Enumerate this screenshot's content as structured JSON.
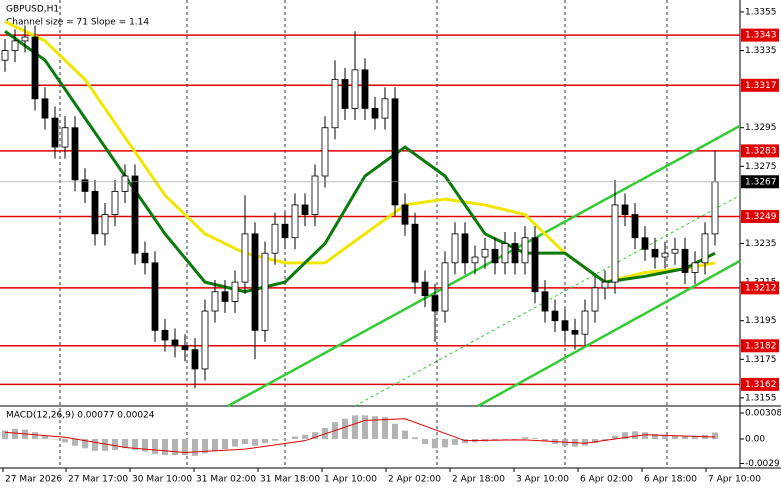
{
  "chart_data": [
    {
      "type": "candlestick",
      "title": "GBPUSD,H1",
      "subtitle": "Channel size = 71 Slope = 1.14",
      "up_color": "#ffffff",
      "down_color": "#000000",
      "open": [
        1.333,
        1.3335,
        1.334,
        1.3342,
        1.331,
        1.33,
        1.3285,
        1.3295,
        1.3268,
        1.3262,
        1.324,
        1.325,
        1.3262,
        1.327,
        1.323,
        1.3225,
        1.319,
        1.3185,
        1.3182,
        1.318,
        1.317,
        1.32,
        1.321,
        1.3205,
        1.3215,
        1.324,
        1.319,
        1.323,
        1.3245,
        1.3238,
        1.3255,
        1.325,
        1.327,
        1.3295,
        1.332,
        1.3305,
        1.3325,
        1.3305,
        1.33,
        1.331,
        1.3255,
        1.3245,
        1.3215,
        1.3208,
        1.32,
        1.3225,
        1.324,
        1.3225,
        1.3228,
        1.3232,
        1.3225,
        1.3235,
        1.3225,
        1.3238,
        1.321,
        1.32,
        1.3195,
        1.319,
        1.3188,
        1.32,
        1.3212,
        1.3215,
        1.3255,
        1.325,
        1.3238,
        1.3232,
        1.3228,
        1.323,
        1.3232,
        1.322,
        1.3225,
        1.324
      ],
      "high": [
        1.3341,
        1.3346,
        1.3348,
        1.3348,
        1.3316,
        1.3306,
        1.3301,
        1.3301,
        1.3274,
        1.3268,
        1.3256,
        1.3268,
        1.3276,
        1.3276,
        1.3236,
        1.3231,
        1.3196,
        1.3191,
        1.3188,
        1.3186,
        1.3206,
        1.3216,
        1.3216,
        1.3221,
        1.326,
        1.3246,
        1.3236,
        1.3251,
        1.3251,
        1.3261,
        1.3261,
        1.3276,
        1.3301,
        1.333,
        1.3326,
        1.3345,
        1.3331,
        1.3311,
        1.3316,
        1.3316,
        1.3261,
        1.3251,
        1.3221,
        1.3214,
        1.3231,
        1.3246,
        1.3246,
        1.3234,
        1.3238,
        1.3238,
        1.3241,
        1.3241,
        1.3244,
        1.3244,
        1.3216,
        1.3206,
        1.3201,
        1.3196,
        1.3206,
        1.3218,
        1.3221,
        1.3268,
        1.3261,
        1.3256,
        1.3244,
        1.3238,
        1.3236,
        1.3238,
        1.3238,
        1.3231,
        1.3246,
        1.3283
      ],
      "low": [
        1.3324,
        1.3329,
        1.3334,
        1.3304,
        1.3294,
        1.3279,
        1.3279,
        1.3262,
        1.3256,
        1.3234,
        1.3234,
        1.3244,
        1.3256,
        1.3224,
        1.3219,
        1.3184,
        1.3179,
        1.3176,
        1.3174,
        1.316,
        1.3164,
        1.3194,
        1.3199,
        1.3199,
        1.3209,
        1.3175,
        1.3184,
        1.3224,
        1.3232,
        1.3232,
        1.3244,
        1.3244,
        1.3264,
        1.3289,
        1.3299,
        1.3299,
        1.3299,
        1.3294,
        1.3294,
        1.3249,
        1.3239,
        1.3209,
        1.3202,
        1.3184,
        1.3194,
        1.3219,
        1.3219,
        1.3219,
        1.3222,
        1.3219,
        1.3219,
        1.3219,
        1.3219,
        1.3204,
        1.3194,
        1.3189,
        1.3184,
        1.318,
        1.3182,
        1.3194,
        1.3206,
        1.3209,
        1.3244,
        1.3232,
        1.3226,
        1.3222,
        1.3222,
        1.3224,
        1.3214,
        1.3214,
        1.3219,
        1.3234
      ],
      "close": [
        1.3335,
        1.334,
        1.3342,
        1.331,
        1.33,
        1.3285,
        1.3295,
        1.3268,
        1.3262,
        1.324,
        1.325,
        1.3262,
        1.327,
        1.323,
        1.3225,
        1.319,
        1.3185,
        1.3182,
        1.318,
        1.317,
        1.32,
        1.321,
        1.3205,
        1.3215,
        1.324,
        1.319,
        1.323,
        1.3245,
        1.3238,
        1.3255,
        1.325,
        1.327,
        1.3295,
        1.332,
        1.3305,
        1.3325,
        1.3305,
        1.33,
        1.331,
        1.3255,
        1.3245,
        1.3215,
        1.3208,
        1.32,
        1.3225,
        1.324,
        1.3225,
        1.3228,
        1.3232,
        1.3225,
        1.3235,
        1.3225,
        1.3238,
        1.321,
        1.32,
        1.3195,
        1.319,
        1.3188,
        1.32,
        1.3212,
        1.3215,
        1.3255,
        1.325,
        1.3238,
        1.3232,
        1.3228,
        1.323,
        1.3232,
        1.322,
        1.3225,
        1.324,
        1.3267
      ],
      "xlim": [
        -0.5,
        73.5
      ],
      "xticks": [
        {
          "value": -0.2,
          "label": "27 Mar 2026"
        },
        {
          "value": 6.1,
          "label": "27 Mar 17:00"
        },
        {
          "value": 12.5,
          "label": "30 Mar 10:00"
        },
        {
          "value": 18.9,
          "label": "31 Mar 02:00"
        },
        {
          "value": 25.3,
          "label": "31 Mar 18:00"
        },
        {
          "value": 31.7,
          "label": "1 Apr 10:00"
        },
        {
          "value": 38.1,
          "label": "2 Apr 02:00"
        },
        {
          "value": 44.5,
          "label": "2 Apr 18:00"
        },
        {
          "value": 50.9,
          "label": "3 Apr 10:00"
        },
        {
          "value": 57.3,
          "label": "6 Apr 02:00"
        },
        {
          "value": 63.7,
          "label": "6 Apr 18:00"
        },
        {
          "value": 70.1,
          "label": "7 Apr 10:00"
        }
      ],
      "ylim": [
        1.31508,
        1.33612
      ],
      "yticks": [
        1.3355,
        1.3335,
        1.3295,
        1.3275,
        1.3235,
        1.3215,
        1.3195,
        1.3175,
        1.3155
      ],
      "levels": [
        1.3343,
        1.3317,
        1.3283,
        1.3249,
        1.3212,
        1.3182,
        1.3162
      ],
      "level_color": "#e00000",
      "current_price": 1.3267,
      "lines": [
        {
          "color": "#f2e600",
          "x": [
            0,
            4,
            8,
            12,
            16,
            20,
            24,
            28,
            32,
            36,
            40,
            44,
            48,
            52,
            56,
            60,
            64,
            68,
            71
          ],
          "values": [
            1.335,
            1.334,
            1.332,
            1.329,
            1.326,
            1.324,
            1.323,
            1.3225,
            1.3225,
            1.324,
            1.3255,
            1.3258,
            1.3255,
            1.325,
            1.323,
            1.3215,
            1.322,
            1.3222,
            1.3225
          ]
        },
        {
          "color": "#0a7a0a",
          "x": [
            0,
            4,
            8,
            12,
            16,
            20,
            24,
            28,
            32,
            36,
            40,
            44,
            48,
            52,
            56,
            60,
            64,
            68,
            71
          ],
          "values": [
            1.3345,
            1.333,
            1.33,
            1.327,
            1.324,
            1.3215,
            1.321,
            1.3215,
            1.3235,
            1.327,
            1.3285,
            1.327,
            1.324,
            1.323,
            1.323,
            1.3215,
            1.3218,
            1.3222,
            1.323
          ]
        }
      ],
      "channel": [
        {
          "color": "#33cc33",
          "x": [
            22.3,
            73.5
          ],
          "values": [
            1.31508,
            1.3296
          ]
        },
        {
          "color": "#33cc33",
          "x": [
            47.3,
            73.5
          ],
          "values": [
            1.31508,
            1.3226
          ]
        },
        {
          "color": "#33cc33",
          "dash": true,
          "x": [
            35,
            73.5
          ],
          "values": [
            1.31508,
            1.326
          ]
        }
      ]
    },
    {
      "type": "macd",
      "title": "MACD(12,26,9) 0.00077 0.00024",
      "color": "#b4b4b4",
      "signal_color": "#e00000",
      "ylim": [
        -0.00344,
        0.00379
      ],
      "yticks": [
        0.00308,
        {
          "value": 0,
          "label": "0.00"
        },
        -0.00291
      ],
      "values": [
        0.001,
        0.0012,
        0.0011,
        0.0008,
        0.0004,
        0.0,
        -0.0004,
        -0.0008,
        -0.0011,
        -0.0014,
        -0.0014,
        -0.0013,
        -0.0011,
        -0.0013,
        -0.0015,
        -0.0018,
        -0.0019,
        -0.0019,
        -0.0019,
        -0.002,
        -0.0017,
        -0.0014,
        -0.0012,
        -0.0009,
        -0.0006,
        -0.0008,
        -0.0005,
        -0.0002,
        0.0,
        0.0003,
        0.0005,
        0.0008,
        0.0013,
        0.002,
        0.0024,
        0.0028,
        0.0028,
        0.0027,
        0.0026,
        0.0018,
        0.001,
        0.0002,
        -0.0006,
        -0.0011,
        -0.001,
        -0.0007,
        -0.0005,
        -0.0004,
        -0.0003,
        -0.0002,
        0.0,
        0.0,
        0.0002,
        0.0001,
        -0.0003,
        -0.0006,
        -0.0008,
        -0.0009,
        -0.0008,
        -0.0005,
        -0.0002,
        0.0004,
        0.0008,
        0.0009,
        0.0008,
        0.0006,
        0.0005,
        0.0004,
        0.0003,
        0.0003,
        0.0005,
        0.00077
      ],
      "signal": {
        "x": [
          0,
          6,
          12,
          18,
          24,
          30,
          36,
          40,
          46,
          52,
          58,
          64,
          71
        ],
        "values": [
          0.0008,
          0.0002,
          -0.001,
          -0.0016,
          -0.0012,
          -0.0002,
          0.0022,
          0.0024,
          -0.0002,
          -0.0001,
          -0.0005,
          0.0005,
          0.00024
        ]
      }
    }
  ]
}
